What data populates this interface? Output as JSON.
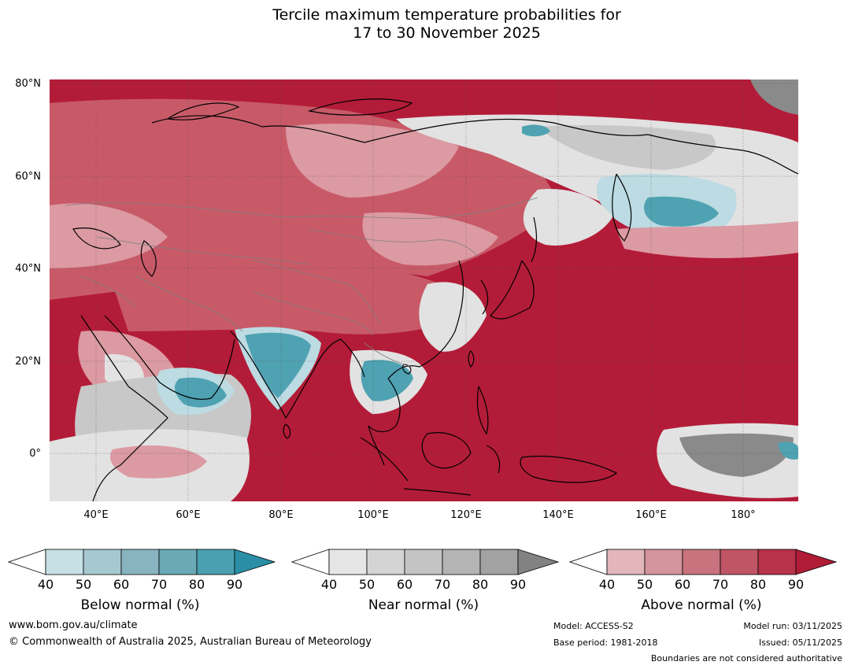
{
  "title_line1": "Tercile maximum temperature probabilities for",
  "title_line2": "17 to 30 November 2025",
  "latitude_labels": [
    "80°N",
    "60°N",
    "40°N",
    "20°N",
    "0°"
  ],
  "longitude_labels": [
    "40°E",
    "60°E",
    "80°E",
    "100°E",
    "120°E",
    "140°E",
    "160°E",
    "180°"
  ],
  "colorbars": [
    {
      "label": "Below normal (%)",
      "ticks": [
        "40",
        "50",
        "60",
        "70",
        "80",
        "90"
      ],
      "colors": [
        "#ffffff",
        "#c6e0e6",
        "#a6c8cf",
        "#88b4c0",
        "#6aaab6",
        "#4aa0b0",
        "#2a8fa6"
      ]
    },
    {
      "label": "Near normal (%)",
      "ticks": [
        "40",
        "50",
        "60",
        "70",
        "80",
        "90"
      ],
      "colors": [
        "#ffffff",
        "#e6e6e6",
        "#d4d4d4",
        "#c4c4c4",
        "#b4b4b4",
        "#a2a2a2",
        "#828282"
      ]
    },
    {
      "label": "Above normal (%)",
      "ticks": [
        "40",
        "50",
        "60",
        "70",
        "80",
        "90"
      ],
      "colors": [
        "#ffffff",
        "#e2b6bb",
        "#d4959c",
        "#c8737d",
        "#c05566",
        "#b8324a",
        "#b01c36"
      ]
    }
  ],
  "footer": {
    "website": "www.bom.gov.au/climate",
    "copyright": "© Commonwealth of Australia 2025, Australian Bureau of Meteorology",
    "model": "Model: ACCESS-S2",
    "base_period": "Base period: 1981-2018",
    "model_run": "Model run: 03/11/2025",
    "issued": "Issued: 05/11/2025",
    "boundaries": "Boundaries are not considered authoritative"
  },
  "map_colors": {
    "ocean_above": "#b31c38",
    "land_above": "#c85a68",
    "above_light": "#dc9aa3",
    "near": "#c8c8c8",
    "near_light": "#e2e2e2",
    "near_dark": "#8a8a8a",
    "below": "#4fa2b2",
    "below_light": "#bcdbe2",
    "coast": "#000000",
    "border": "#808080"
  }
}
